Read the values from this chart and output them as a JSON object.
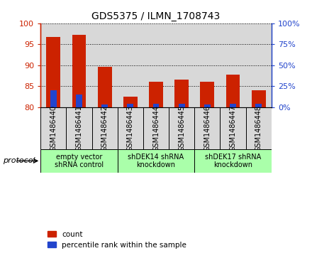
{
  "title": "GDS5375 / ILMN_1708743",
  "samples": [
    "GSM1486440",
    "GSM1486441",
    "GSM1486442",
    "GSM1486443",
    "GSM1486444",
    "GSM1486445",
    "GSM1486446",
    "GSM1486447",
    "GSM1486448"
  ],
  "count_values": [
    96.8,
    97.3,
    89.6,
    82.4,
    86.1,
    86.6,
    86.1,
    87.8,
    84.0
  ],
  "percentile_values": [
    20.0,
    15.0,
    3.0,
    3.5,
    4.0,
    3.5,
    3.0,
    4.0,
    3.5
  ],
  "ymin": 80,
  "ymax": 100,
  "yticks_left": [
    80,
    85,
    90,
    95,
    100
  ],
  "yticks_right": [
    0,
    25,
    50,
    75,
    100
  ],
  "bar_bottom": 80,
  "red_color": "#CC2200",
  "blue_color": "#2244CC",
  "protocols": [
    {
      "label": "empty vector\nshRNA control",
      "start": 0,
      "end": 3,
      "color": "#AAFFAA"
    },
    {
      "label": "shDEK14 shRNA\nknockdown",
      "start": 3,
      "end": 6,
      "color": "#AAFFAA"
    },
    {
      "label": "shDEK17 shRNA\nknockdown",
      "start": 6,
      "end": 9,
      "color": "#AAFFAA"
    }
  ],
  "protocol_label": "protocol",
  "legend_count": "count",
  "legend_percentile": "percentile rank within the sample",
  "bg_color": "#D8D8D8",
  "cell_border": "#888888"
}
